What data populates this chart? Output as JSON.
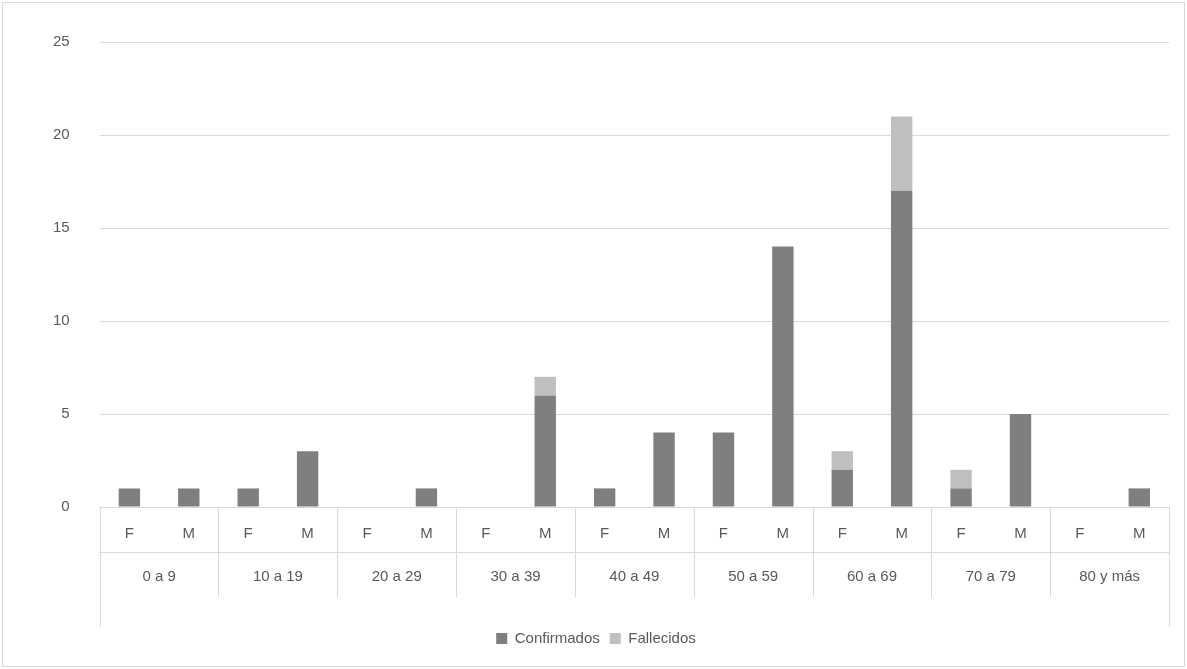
{
  "chart_data": {
    "type": "bar",
    "stacked": true,
    "categories": [
      "F",
      "M",
      "F",
      "M",
      "F",
      "M",
      "F",
      "M",
      "F",
      "M",
      "F",
      "M",
      "F",
      "M",
      "F",
      "M",
      "F",
      "M"
    ],
    "annotations": [
      "0 a 9",
      "10 a 19",
      "20 a 29",
      "30 a 39",
      "40 a 49",
      "50 a 59",
      "60 a 69",
      "70 a 79",
      "80 y más"
    ],
    "series": [
      {
        "name": "Confirmados",
        "color": "#7f7f7f",
        "values": [
          1,
          1,
          1,
          3,
          0,
          1,
          0,
          6,
          1,
          4,
          4,
          14,
          2,
          17,
          1,
          5,
          0,
          1
        ]
      },
      {
        "name": "Fallecidos",
        "color": "#bfbfbf",
        "values": [
          0,
          0,
          0,
          0,
          0,
          0,
          0,
          1,
          0,
          0,
          0,
          0,
          1,
          4,
          1,
          0,
          0,
          0
        ]
      }
    ],
    "ylim": [
      0,
      25
    ],
    "yticks": [
      0,
      5,
      10,
      15,
      20,
      25
    ],
    "grid": "y",
    "legend": "bottom"
  }
}
